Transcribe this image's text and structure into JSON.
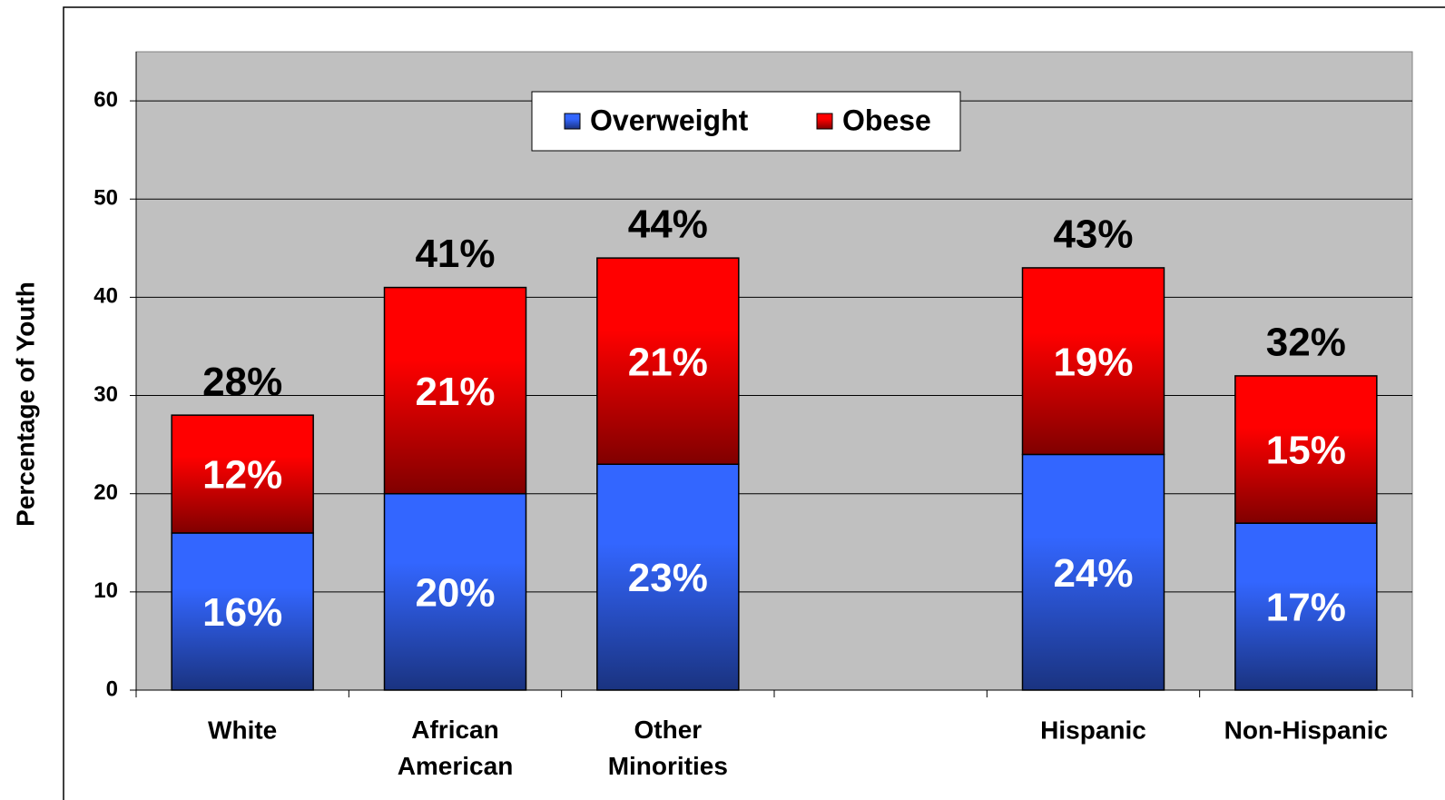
{
  "chart_data": {
    "type": "stacked_bar",
    "ylabel": "Percentage of Youth",
    "categories": [
      "White",
      "African American",
      "Other Minorities",
      null,
      "Hispanic",
      "Non-Hispanic"
    ],
    "series": [
      {
        "name": "Overweight",
        "color": "#3366ff",
        "values": [
          16,
          20,
          23,
          null,
          24,
          17
        ],
        "value_labels": [
          "16%",
          "20%",
          "23%",
          null,
          "24%",
          "17%"
        ]
      },
      {
        "name": "Obese",
        "color": "#ff0000",
        "values": [
          12,
          21,
          21,
          null,
          19,
          15
        ],
        "value_labels": [
          "12%",
          "21%",
          "21%",
          null,
          "19%",
          "15%"
        ]
      }
    ],
    "total_labels": [
      "28%",
      "41%",
      "44%",
      null,
      "43%",
      "32%"
    ],
    "ylim": [
      0,
      65
    ],
    "yticks": [
      0,
      10,
      20,
      30,
      40,
      50,
      60
    ],
    "grid": true,
    "legend": "top"
  }
}
